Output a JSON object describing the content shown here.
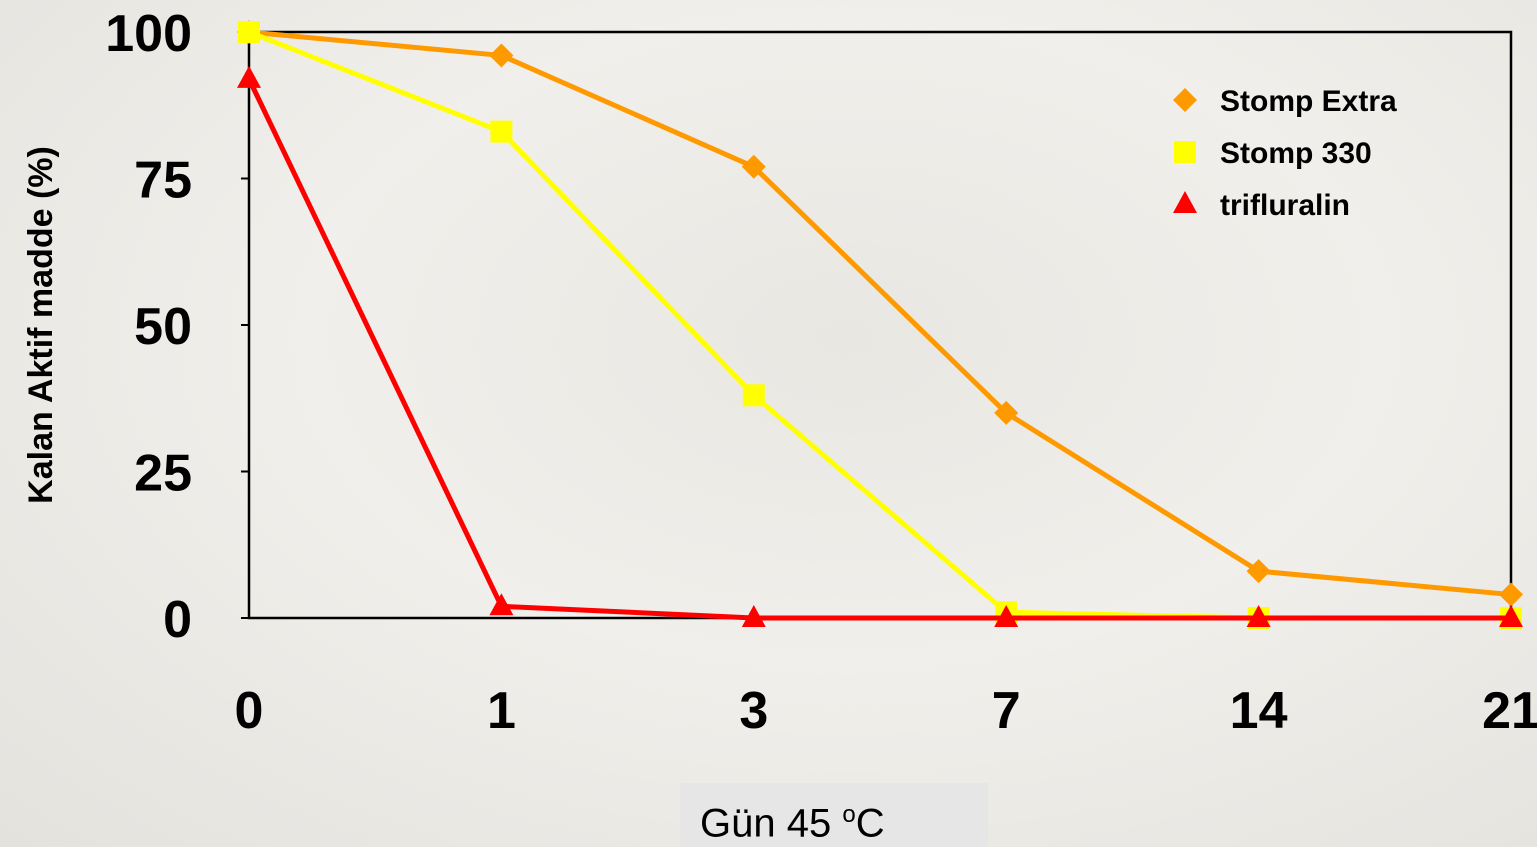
{
  "chart_data": {
    "type": "line",
    "x": [
      "0",
      "1",
      "3",
      "7",
      "14",
      "21"
    ],
    "xlabel": "Gün 45",
    "xlabel_unit_sup": "o",
    "xlabel_unit": "C",
    "ylabel": "Kalan Aktif madde (%)",
    "ylim": [
      0,
      100
    ],
    "yticks": [
      "0",
      "25",
      "50",
      "75",
      "100"
    ],
    "legend_position": "top-right",
    "grid": false,
    "series": [
      {
        "name": "Stomp Extra",
        "color": "#ff9900",
        "marker": "diamond",
        "values": [
          100,
          96,
          77,
          35,
          8,
          4
        ]
      },
      {
        "name": "Stomp 330",
        "color": "#ffff00",
        "marker": "square",
        "values": [
          100,
          83,
          38,
          1,
          0,
          0
        ]
      },
      {
        "name": "trifluralin",
        "color": "#ff0000",
        "marker": "triangle",
        "values": [
          92,
          2,
          0,
          0,
          0,
          0
        ]
      }
    ]
  }
}
